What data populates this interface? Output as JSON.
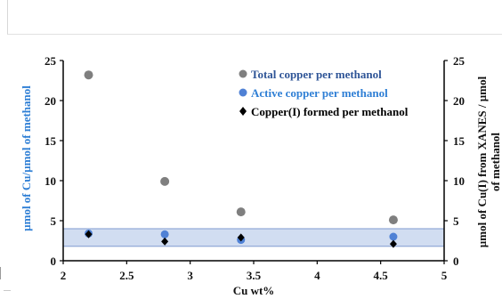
{
  "chart_data": {
    "type": "scatter",
    "x_label": "Cu wt%",
    "y_label_left": "µmol of Cu/µmol of methanol",
    "y_label_right_line1": "µmol of Cu(I) from XANES / µmol",
    "y_label_right_line2": "of methanol",
    "xlim": [
      2,
      5
    ],
    "ylim": [
      0,
      25
    ],
    "x_ticks": [
      "2",
      "2.5",
      "3",
      "3.5",
      "4",
      "4.5",
      "5"
    ],
    "y_ticks": [
      "0",
      "5",
      "10",
      "15",
      "20",
      "25"
    ],
    "x_tick_values": [
      2,
      2.5,
      3,
      3.5,
      4,
      4.5,
      5
    ],
    "y_tick_values": [
      0,
      5,
      10,
      15,
      20,
      25
    ],
    "band": {
      "y_min": 1.8,
      "y_max": 4.0,
      "color": "#c9d7ef"
    },
    "series": [
      {
        "name": "Total copper per methanol",
        "marker": "circle",
        "color": "#7f7f7f",
        "label_color": "#2f5597",
        "points": [
          {
            "x": 2.2,
            "y": 23.2
          },
          {
            "x": 2.8,
            "y": 9.9
          },
          {
            "x": 3.4,
            "y": 6.1
          },
          {
            "x": 4.6,
            "y": 5.1
          }
        ]
      },
      {
        "name": "Active copper per methanol",
        "marker": "circle",
        "color": "#4f81d5",
        "label_color": "#2f7fd5",
        "points": [
          {
            "x": 2.2,
            "y": 3.4
          },
          {
            "x": 2.8,
            "y": 3.3
          },
          {
            "x": 3.4,
            "y": 2.6
          },
          {
            "x": 4.6,
            "y": 3.0
          }
        ]
      },
      {
        "name": "Copper(I) formed per methanol",
        "marker": "diamond",
        "color": "#000000",
        "label_color": "#000000",
        "points": [
          {
            "x": 2.2,
            "y": 3.3
          },
          {
            "x": 2.8,
            "y": 2.4
          },
          {
            "x": 3.4,
            "y": 2.9
          },
          {
            "x": 4.6,
            "y": 2.1
          }
        ]
      }
    ]
  }
}
